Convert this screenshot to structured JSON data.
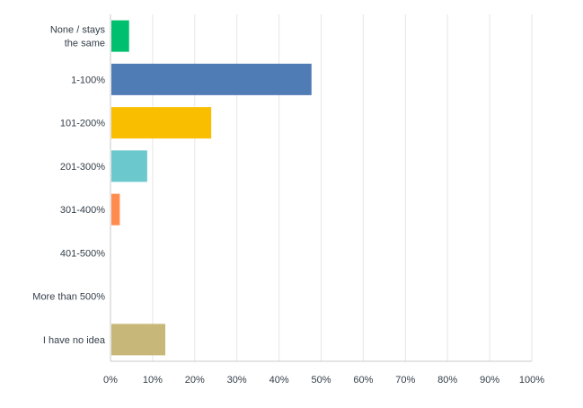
{
  "chart_data": {
    "type": "bar",
    "orientation": "horizontal",
    "categories": [
      [
        "None / stays",
        "the same"
      ],
      [
        "1-100%"
      ],
      [
        "101-200%"
      ],
      [
        "201-300%"
      ],
      [
        "301-400%"
      ],
      [
        "401-500%"
      ],
      [
        "More than 500%"
      ],
      [
        "I have no idea"
      ]
    ],
    "values": [
      4.2,
      47.5,
      23.7,
      8.5,
      2.0,
      0,
      0,
      12.8
    ],
    "colors": [
      "#00bf6f",
      "#507cb6",
      "#f9be00",
      "#6bc8cd",
      "#ff8b4f",
      "#7f7f7f",
      "#95cc5d",
      "#c7b879"
    ],
    "xlim": [
      0,
      100
    ],
    "x_ticks": [
      "0%",
      "10%",
      "20%",
      "30%",
      "40%",
      "50%",
      "60%",
      "70%",
      "80%",
      "90%",
      "100%"
    ],
    "grid": true,
    "legend": "none"
  }
}
